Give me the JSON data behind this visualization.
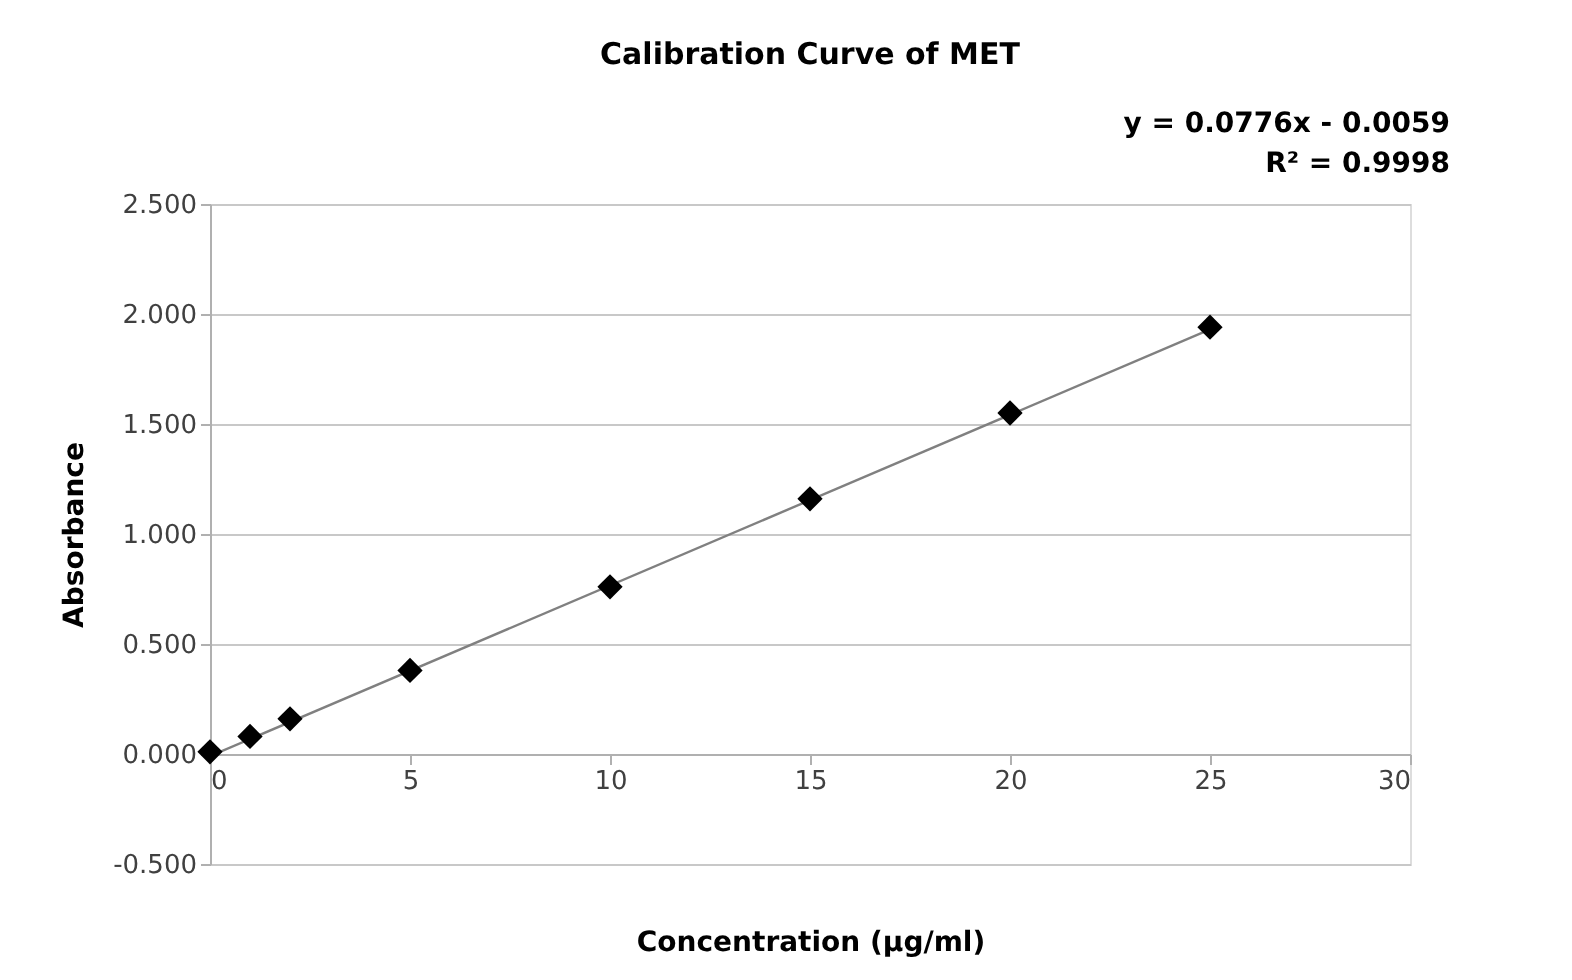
{
  "chart_data": {
    "type": "scatter",
    "title": "Calibration Curve of MET",
    "xlabel": "Concentration (µg/ml)",
    "ylabel": "Absorbance",
    "annotations": [
      "y = 0.0776x - 0.0059",
      "R² = 0.9998"
    ],
    "series": [
      {
        "color": "#000000",
        "marker": "diamond",
        "x": [
          0,
          1,
          2,
          5,
          10,
          15,
          20,
          25
        ],
        "values": [
          0.01,
          0.08,
          0.16,
          0.38,
          0.76,
          1.16,
          1.55,
          1.94
        ]
      },
      {
        "type": "line",
        "color": "#808080",
        "line_style": "solid",
        "marker": "none",
        "x": [
          0,
          25
        ],
        "values": [
          -0.01,
          1.93
        ]
      }
    ],
    "xlim": [
      0,
      30
    ],
    "xticks": [
      0,
      5,
      10,
      15,
      20,
      25,
      30
    ],
    "ylim": [
      -0.5,
      2.5
    ],
    "yticks": [
      {
        "value": -0.5,
        "label": "-0.500"
      },
      {
        "value": 0,
        "label": "0.000"
      },
      {
        "value": 0.5,
        "label": "0.500"
      },
      {
        "value": 1,
        "label": "1.000"
      },
      {
        "value": 1.5,
        "label": "1.500"
      },
      {
        "value": 2,
        "label": "2.000"
      },
      {
        "value": 2.5,
        "label": "2.500"
      }
    ],
    "grid": "y"
  }
}
